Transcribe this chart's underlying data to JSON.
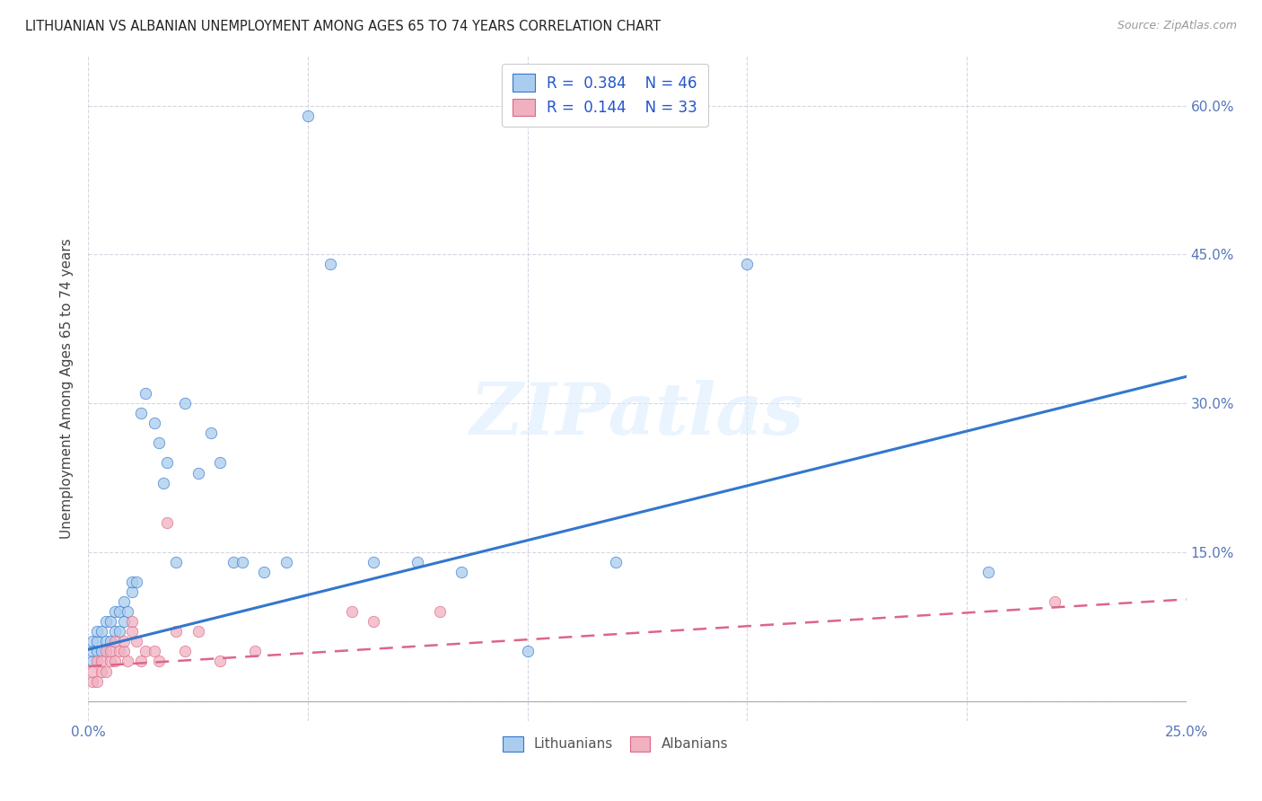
{
  "title": "LITHUANIAN VS ALBANIAN UNEMPLOYMENT AMONG AGES 65 TO 74 YEARS CORRELATION CHART",
  "source": "Source: ZipAtlas.com",
  "ylabel": "Unemployment Among Ages 65 to 74 years",
  "xlim": [
    0.0,
    0.25
  ],
  "ylim": [
    -0.02,
    0.65
  ],
  "ytick_positions": [
    0.0,
    0.15,
    0.3,
    0.45,
    0.6
  ],
  "ytick_labels": [
    "",
    "15.0%",
    "30.0%",
    "45.0%",
    "60.0%"
  ],
  "xtick_positions": [
    0.0,
    0.05,
    0.1,
    0.15,
    0.2,
    0.25
  ],
  "xtick_labels": [
    "0.0%",
    "",
    "",
    "",
    "",
    "25.0%"
  ],
  "watermark": "ZIPatlas",
  "color_lith": "#aaccee",
  "color_alb": "#f0b0c0",
  "line_color_lith": "#3377cc",
  "line_color_alb": "#dd6688",
  "grid_color": "#ccccdd",
  "lith_x": [
    0.001,
    0.001,
    0.001,
    0.002,
    0.002,
    0.002,
    0.003,
    0.003,
    0.004,
    0.004,
    0.005,
    0.005,
    0.006,
    0.006,
    0.007,
    0.007,
    0.008,
    0.008,
    0.009,
    0.01,
    0.01,
    0.011,
    0.012,
    0.013,
    0.015,
    0.016,
    0.017,
    0.018,
    0.02,
    0.022,
    0.025,
    0.028,
    0.03,
    0.033,
    0.035,
    0.04,
    0.045,
    0.05,
    0.055,
    0.065,
    0.075,
    0.085,
    0.1,
    0.12,
    0.15,
    0.205
  ],
  "lith_y": [
    0.04,
    0.06,
    0.05,
    0.05,
    0.06,
    0.07,
    0.05,
    0.07,
    0.06,
    0.08,
    0.06,
    0.08,
    0.07,
    0.09,
    0.07,
    0.09,
    0.08,
    0.1,
    0.09,
    0.11,
    0.12,
    0.12,
    0.29,
    0.31,
    0.28,
    0.26,
    0.22,
    0.24,
    0.14,
    0.3,
    0.23,
    0.27,
    0.24,
    0.14,
    0.14,
    0.13,
    0.14,
    0.59,
    0.44,
    0.14,
    0.14,
    0.13,
    0.05,
    0.14,
    0.44,
    0.13
  ],
  "alb_x": [
    0.001,
    0.001,
    0.002,
    0.002,
    0.003,
    0.003,
    0.004,
    0.004,
    0.005,
    0.005,
    0.006,
    0.006,
    0.007,
    0.008,
    0.008,
    0.009,
    0.01,
    0.01,
    0.011,
    0.012,
    0.013,
    0.015,
    0.016,
    0.018,
    0.02,
    0.022,
    0.025,
    0.03,
    0.038,
    0.06,
    0.065,
    0.08,
    0.22
  ],
  "alb_y": [
    0.02,
    0.03,
    0.02,
    0.04,
    0.03,
    0.04,
    0.03,
    0.05,
    0.04,
    0.05,
    0.04,
    0.06,
    0.05,
    0.05,
    0.06,
    0.04,
    0.07,
    0.08,
    0.06,
    0.04,
    0.05,
    0.05,
    0.04,
    0.18,
    0.07,
    0.05,
    0.07,
    0.04,
    0.05,
    0.09,
    0.08,
    0.09,
    0.1
  ],
  "lith_intercept": 0.052,
  "lith_slope": 1.1,
  "alb_intercept": 0.035,
  "alb_slope": 0.27
}
